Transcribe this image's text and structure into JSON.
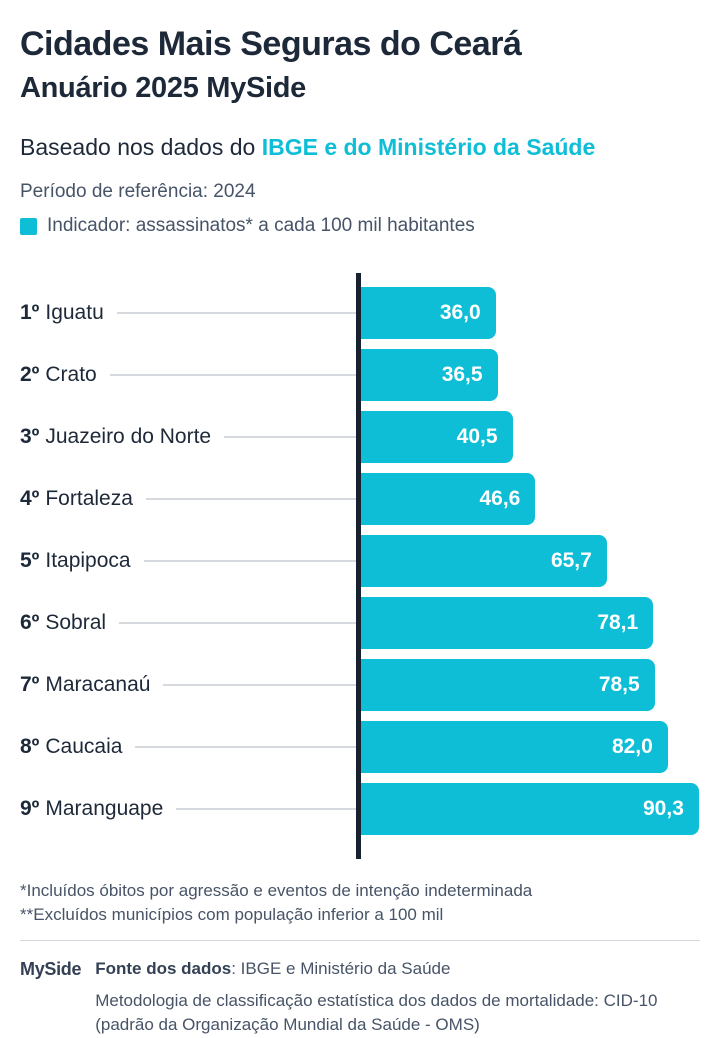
{
  "header": {
    "title": "Cidades Mais Seguras do Ceará",
    "subtitle": "Anuário 2025 MySide",
    "based_prefix": "Baseado nos dados do ",
    "based_highlight": "IBGE e do Ministério da Saúde",
    "period": "Período de referência: 2024",
    "legend_label": "Indicador: assassinatos* a cada 100 mil habitantes"
  },
  "chart_data": {
    "type": "bar",
    "orientation": "horizontal",
    "title": "Cidades Mais Seguras do Ceará - Anuário 2025 MySide",
    "xlabel": "assassinatos a cada 100 mil habitantes",
    "xlim": [
      0,
      90.6
    ],
    "grid": false,
    "legend_position": "top",
    "categories": [
      "Iguatu",
      "Crato",
      "Juazeiro do Norte",
      "Fortaleza",
      "Itapipoca",
      "Sobral",
      "Maracanaú",
      "Caucaia",
      "Maranguape"
    ],
    "rows": [
      {
        "rank": "1º",
        "city": "Iguatu",
        "value": 36.0,
        "value_label": "36,0"
      },
      {
        "rank": "2º",
        "city": "Crato",
        "value": 36.5,
        "value_label": "36,5"
      },
      {
        "rank": "3º",
        "city": "Juazeiro do Norte",
        "value": 40.5,
        "value_label": "40,5"
      },
      {
        "rank": "4º",
        "city": "Fortaleza",
        "value": 46.6,
        "value_label": "46,6"
      },
      {
        "rank": "5º",
        "city": "Itapipoca",
        "value": 65.7,
        "value_label": "65,7"
      },
      {
        "rank": "6º",
        "city": "Sobral",
        "value": 78.1,
        "value_label": "78,1"
      },
      {
        "rank": "7º",
        "city": "Maracanaú",
        "value": 78.5,
        "value_label": "78,5"
      },
      {
        "rank": "8º",
        "city": "Caucaia",
        "value": 82.0,
        "value_label": "82,0"
      },
      {
        "rank": "9º",
        "city": "Maranguape",
        "value": 90.3,
        "value_label": "90,3"
      }
    ]
  },
  "footnotes": {
    "line1": "*Incluídos óbitos por agressão e eventos de intenção indeterminada",
    "line2": "**Excluídos municípios com população inferior a 100 mil"
  },
  "footer": {
    "logo": "MySide",
    "source_label": "Fonte dos dados",
    "source_value": ": IBGE e Ministério da Saúde",
    "methodology_line1": "Metodologia de classificação estatística dos dados de mortalidade: CID-10",
    "methodology_line2": "(padrão da Organização Mundial da Saúde - OMS)"
  },
  "colors": {
    "accent": "#0EBED6",
    "title_text": "#1D2939",
    "muted_text": "#475467",
    "axis": "#18212F",
    "bar_value_text": "#FFFFFF"
  }
}
